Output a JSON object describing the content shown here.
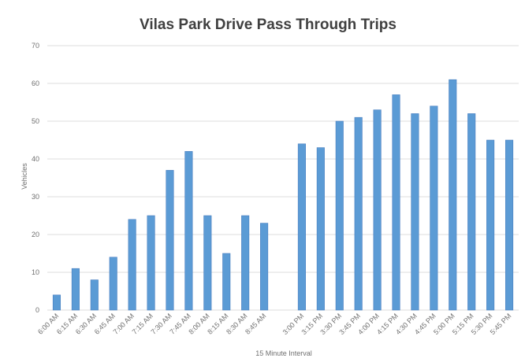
{
  "chart_data": {
    "type": "bar",
    "title": "Vilas Park Drive Pass Through Trips",
    "xlabel": "15 Minute Interval",
    "ylabel": "Vehicles",
    "ylim": [
      0,
      70
    ],
    "yticks": [
      0,
      10,
      20,
      30,
      40,
      50,
      60,
      70
    ],
    "grid": true,
    "legend": "none",
    "bar_color": "#5b9bd5",
    "categories": [
      "6:00 AM",
      "6:15 AM",
      "6:30 AM",
      "6:45 AM",
      "7:00 AM",
      "7:15 AM",
      "7:30 AM",
      "7:45 AM",
      "8:00 AM",
      "8:15 AM",
      "8:30 AM",
      "8:45 AM",
      "",
      "3:00 PM",
      "3:15 PM",
      "3:30 PM",
      "3:45 PM",
      "4:00 PM",
      "4:15 PM",
      "4:30 PM",
      "4:45 PM",
      "5:00 PM",
      "5:15 PM",
      "5:30 PM",
      "5:45 PM"
    ],
    "values": [
      4,
      11,
      8,
      14,
      24,
      25,
      37,
      42,
      25,
      15,
      25,
      23,
      null,
      44,
      43,
      50,
      51,
      53,
      57,
      52,
      54,
      61,
      52,
      45,
      45
    ]
  }
}
